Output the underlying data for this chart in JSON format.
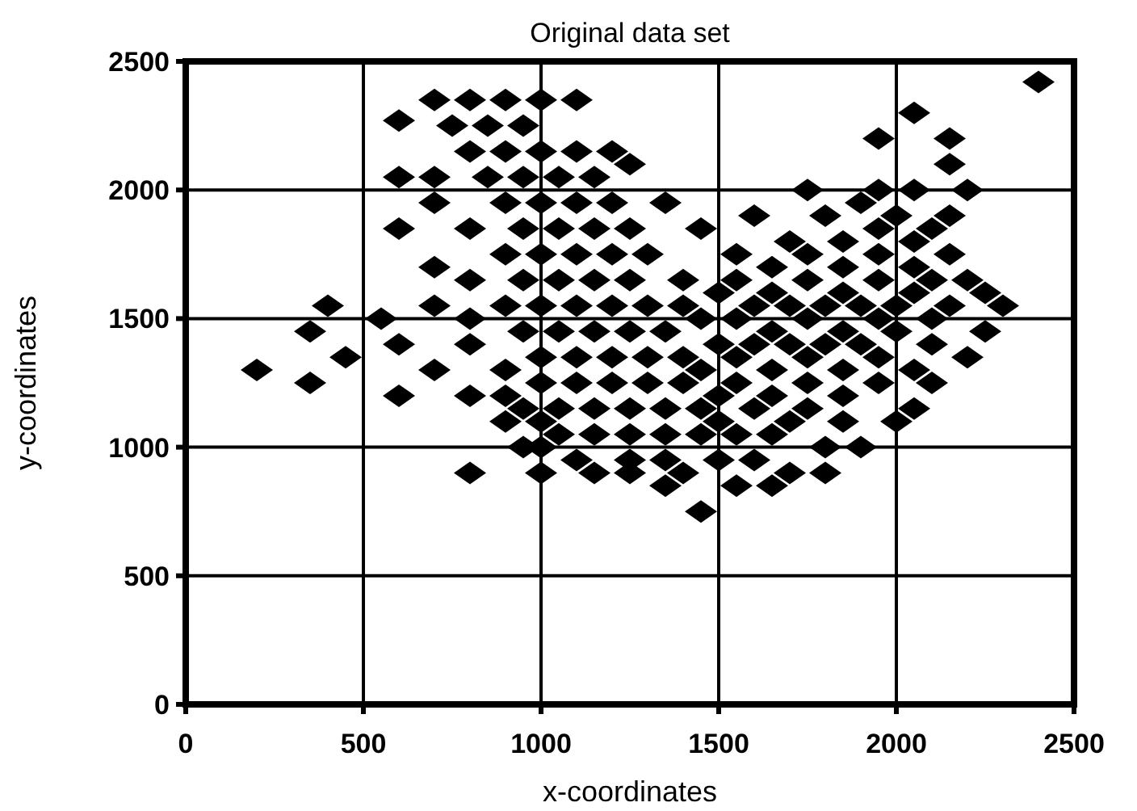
{
  "chart_data": {
    "type": "scatter",
    "title": "Original data set",
    "xlabel": "x-coordinates",
    "ylabel": "y-coordinates",
    "xlim": [
      0,
      2500
    ],
    "ylim": [
      0,
      2500
    ],
    "xticks": [
      0,
      500,
      1000,
      1500,
      2000,
      2500
    ],
    "yticks": [
      0,
      500,
      1000,
      1500,
      2000,
      2500
    ],
    "grid": true,
    "marker": "diamond",
    "series": [
      {
        "color": "#000000",
        "x": [
          2400,
          700,
          800,
          900,
          1000,
          1100,
          2050,
          600,
          750,
          850,
          950,
          1950,
          2150,
          800,
          900,
          1000,
          1100,
          1200,
          1250,
          2150,
          600,
          700,
          850,
          950,
          1050,
          1150,
          1750,
          1950,
          2050,
          2200,
          700,
          900,
          1000,
          1100,
          1200,
          1350,
          1900,
          1600,
          1800,
          2000,
          2150,
          600,
          800,
          950,
          1050,
          1150,
          1250,
          1450,
          1950,
          2100,
          1700,
          1850,
          2050,
          900,
          1000,
          1100,
          1200,
          1300,
          1550,
          1750,
          1950,
          2150,
          700,
          1650,
          1850,
          2050,
          800,
          950,
          1050,
          1150,
          1250,
          1400,
          1550,
          1750,
          1950,
          2100,
          2200,
          1500,
          1650,
          1850,
          2050,
          2250,
          400,
          700,
          900,
          1000,
          1100,
          1200,
          1300,
          1400,
          1600,
          1700,
          1800,
          1900,
          2000,
          2150,
          2300,
          550,
          800,
          1450,
          1550,
          1750,
          1950,
          2100,
          350,
          950,
          1050,
          1150,
          1250,
          1350,
          1650,
          1850,
          2000,
          2250,
          600,
          800,
          1500,
          1600,
          1700,
          1800,
          1900,
          2100,
          450,
          1000,
          1100,
          1200,
          1300,
          1400,
          1550,
          1750,
          1950,
          2200,
          200,
          700,
          900,
          1450,
          1650,
          1850,
          2050,
          350,
          1000,
          1100,
          1200,
          1300,
          1400,
          1550,
          1750,
          1950,
          2100,
          600,
          800,
          900,
          1500,
          1650,
          1850,
          950,
          1050,
          1150,
          1250,
          1350,
          1450,
          1600,
          1750,
          2050,
          900,
          1000,
          1500,
          1700,
          1850,
          2000,
          1050,
          1150,
          1250,
          1350,
          1450,
          1550,
          1650,
          950,
          1000,
          1800,
          1900,
          1100,
          1250,
          1350,
          1500,
          1600,
          800,
          1000,
          1150,
          1250,
          1400,
          1700,
          1800,
          1350,
          1550,
          1650,
          1450
        ],
        "values": [
          2420,
          2350,
          2350,
          2350,
          2350,
          2350,
          2300,
          2270,
          2250,
          2250,
          2250,
          2200,
          2200,
          2150,
          2150,
          2150,
          2150,
          2150,
          2100,
          2100,
          2050,
          2050,
          2050,
          2050,
          2050,
          2050,
          2000,
          2000,
          2000,
          2000,
          1950,
          1950,
          1950,
          1950,
          1950,
          1950,
          1950,
          1900,
          1900,
          1900,
          1900,
          1850,
          1850,
          1850,
          1850,
          1850,
          1850,
          1850,
          1850,
          1850,
          1800,
          1800,
          1800,
          1750,
          1750,
          1750,
          1750,
          1750,
          1750,
          1750,
          1750,
          1750,
          1700,
          1700,
          1700,
          1700,
          1650,
          1650,
          1650,
          1650,
          1650,
          1650,
          1650,
          1650,
          1650,
          1650,
          1650,
          1600,
          1600,
          1600,
          1600,
          1600,
          1550,
          1550,
          1550,
          1550,
          1550,
          1550,
          1550,
          1550,
          1550,
          1550,
          1550,
          1550,
          1550,
          1550,
          1550,
          1500,
          1500,
          1500,
          1500,
          1500,
          1500,
          1500,
          1450,
          1450,
          1450,
          1450,
          1450,
          1450,
          1450,
          1450,
          1450,
          1450,
          1400,
          1400,
          1400,
          1400,
          1400,
          1400,
          1400,
          1400,
          1350,
          1350,
          1350,
          1350,
          1350,
          1350,
          1350,
          1350,
          1350,
          1350,
          1300,
          1300,
          1300,
          1300,
          1300,
          1300,
          1300,
          1250,
          1250,
          1250,
          1250,
          1250,
          1250,
          1250,
          1250,
          1250,
          1250,
          1200,
          1200,
          1200,
          1200,
          1200,
          1200,
          1150,
          1150,
          1150,
          1150,
          1150,
          1150,
          1150,
          1150,
          1150,
          1100,
          1100,
          1100,
          1100,
          1100,
          1100,
          1050,
          1050,
          1050,
          1050,
          1050,
          1050,
          1050,
          1000,
          1000,
          1000,
          1000,
          950,
          950,
          950,
          950,
          950,
          900,
          900,
          900,
          900,
          900,
          900,
          900,
          850,
          850,
          850,
          750
        ]
      }
    ]
  }
}
